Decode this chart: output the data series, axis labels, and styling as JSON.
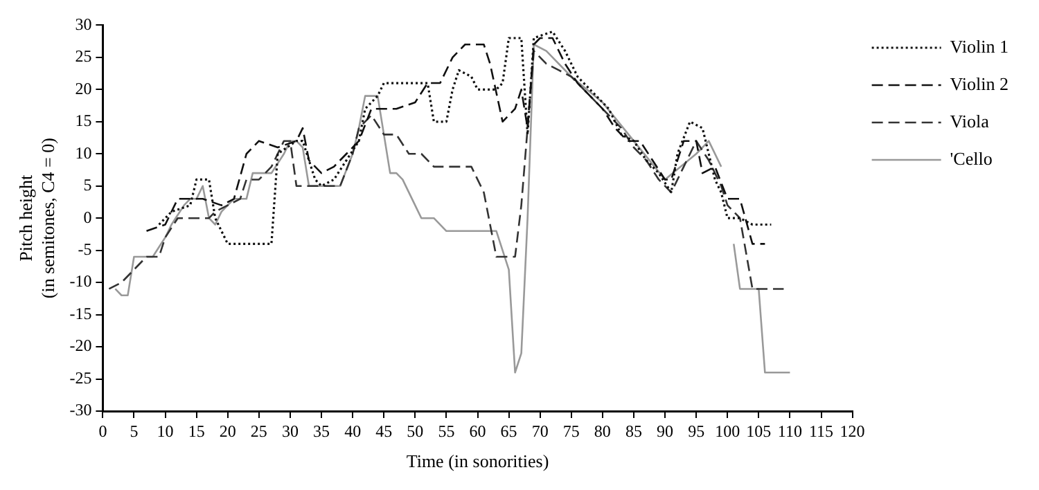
{
  "chart_data": {
    "type": "line",
    "xlabel": "Time (in sonorities)",
    "ylabel": "Pitch height\n(in semitones, C4 = 0)",
    "xlim": [
      0,
      120
    ],
    "xticks": [
      0,
      5,
      10,
      15,
      20,
      25,
      30,
      35,
      40,
      45,
      50,
      55,
      60,
      65,
      70,
      75,
      80,
      85,
      90,
      95,
      100,
      105,
      110,
      115,
      120
    ],
    "ylim": [
      -30,
      30
    ],
    "yticks": [
      -30,
      -25,
      -20,
      -15,
      -10,
      -5,
      0,
      5,
      10,
      15,
      20,
      25,
      30
    ],
    "grid": false,
    "legend": "top right",
    "marker": "none",
    "series": [
      {
        "name": "Violin 1",
        "color": "#111111",
        "line_style": "dotted",
        "x": [
          9,
          11,
          14,
          15,
          17,
          18,
          20,
          27,
          28,
          31,
          32,
          34,
          35,
          37,
          39,
          41,
          42,
          44,
          45,
          52,
          53,
          55,
          56,
          57,
          59,
          60,
          63,
          64,
          65,
          67,
          68,
          69,
          72,
          74,
          76,
          79,
          81,
          83,
          85,
          87,
          89,
          91,
          92,
          94,
          96,
          98,
          99,
          100,
          102,
          104,
          107
        ],
        "values": [
          -1,
          1,
          2,
          6,
          6,
          0,
          -4,
          -4,
          10,
          12,
          12,
          6,
          5,
          6,
          9,
          12,
          17,
          19,
          21,
          21,
          15,
          15,
          20,
          23,
          22,
          20,
          20,
          21,
          28,
          28,
          13,
          28,
          29,
          26,
          22,
          19,
          17,
          13,
          12,
          9,
          7,
          4,
          10,
          15,
          14,
          6,
          4,
          0,
          0,
          -1,
          -1
        ]
      },
      {
        "name": "Violin 2",
        "color": "#111111",
        "line_style": "dashed",
        "x": [
          7,
          10,
          12,
          16,
          19,
          21,
          23,
          25,
          28,
          31,
          32,
          33,
          35,
          37,
          39,
          41,
          43,
          47,
          50,
          52,
          54,
          56,
          58,
          61,
          62,
          64,
          66,
          67,
          68,
          69,
          70,
          72,
          74,
          76,
          78,
          80,
          82,
          84,
          86,
          88,
          90,
          91,
          93,
          95,
          96,
          98,
          100,
          102,
          104,
          106
        ],
        "values": [
          -2,
          -1,
          3,
          3,
          2,
          3,
          10,
          12,
          11,
          12,
          14,
          9,
          7,
          8,
          10,
          12,
          17,
          17,
          18,
          21,
          21,
          25,
          27,
          27,
          24,
          15,
          17,
          20,
          14,
          27,
          28,
          28,
          24,
          21,
          19,
          17,
          14,
          12,
          12,
          9,
          6,
          6,
          12,
          12,
          7,
          8,
          3,
          3,
          -4,
          -4
        ]
      },
      {
        "name": "Viola",
        "color": "#333333",
        "line_style": "dashed",
        "x": [
          1,
          3,
          5,
          7,
          9,
          10,
          12,
          17,
          18,
          20,
          22,
          23,
          25,
          27,
          29,
          30,
          31,
          38,
          40,
          41,
          43,
          45,
          47,
          49,
          51,
          53,
          59,
          61,
          63,
          66,
          67,
          69,
          71,
          73,
          75,
          77,
          79,
          81,
          83,
          85,
          87,
          89,
          91,
          93,
          95,
          97,
          99,
          100,
          102,
          104,
          109
        ],
        "values": [
          -11,
          -10,
          -8,
          -6,
          -6,
          -3,
          0,
          0,
          1,
          2,
          3,
          6,
          6,
          8,
          12,
          12,
          5,
          5,
          10,
          14,
          16,
          13,
          13,
          10,
          10,
          8,
          8,
          4,
          -6,
          -6,
          2,
          26,
          24,
          23,
          22,
          20,
          18,
          16,
          14,
          11,
          9,
          6,
          4,
          8,
          12,
          9,
          5,
          2,
          0,
          -11,
          -11
        ]
      },
      {
        "name": "'Cello",
        "color": "#999999",
        "line_style": "solid",
        "x": [
          2,
          3,
          4,
          5,
          8,
          10,
          11,
          13,
          14,
          15,
          16,
          17,
          18,
          19,
          20,
          21,
          23,
          24,
          27,
          29,
          30,
          31,
          32,
          33,
          38,
          40,
          41,
          42,
          44,
          45,
          46,
          47,
          48,
          50,
          51,
          53,
          55,
          63,
          65,
          66,
          67,
          68,
          69,
          71,
          75,
          80,
          85,
          90,
          95,
          97,
          99,
          100,
          101,
          102,
          105,
          106,
          110
        ],
        "values": [
          -11,
          -12,
          -12,
          -6,
          -6,
          -3,
          -1,
          2,
          3,
          3,
          5,
          0,
          -1,
          1,
          2,
          3,
          3,
          7,
          7,
          10,
          12,
          12,
          11,
          5,
          5,
          10,
          14,
          19,
          19,
          13,
          7,
          7,
          6,
          2,
          0,
          0,
          -2,
          -2,
          -8,
          -24,
          -21,
          0,
          27,
          26,
          22,
          18,
          12,
          6,
          10,
          12,
          8,
          null,
          -4,
          -11,
          -11,
          -24,
          -24
        ]
      }
    ]
  }
}
